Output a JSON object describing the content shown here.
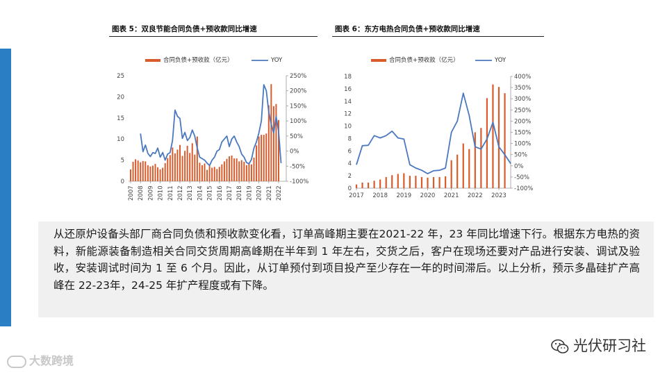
{
  "chart_data": [
    {
      "type": "bar+line",
      "title": "图表 5：双良节能合同负债+预收款同比增速",
      "legend": {
        "position": "top",
        "bar": "合同负债+预收款（亿元）",
        "line": "YOY"
      },
      "xticks": [
        "2007",
        "2008",
        "2009",
        "2010",
        "2011",
        "2012",
        "2013",
        "2014",
        "2015",
        "2016",
        "2017",
        "2018",
        "2019",
        "2020",
        "2021",
        "2022"
      ],
      "y_left": {
        "min": 0,
        "max": 25,
        "ticks": [
          "0",
          "5",
          "10",
          "15",
          "20",
          "25"
        ]
      },
      "y_right": {
        "min": -100,
        "max": 250,
        "ticks": [
          "-100%",
          "-50%",
          "0%",
          "50%",
          "100%",
          "150%",
          "200%",
          "250%"
        ]
      },
      "colors": {
        "bar": "#d95b2b",
        "line": "#4a78be"
      },
      "bar_values": [
        2.8,
        4.6,
        5.2,
        4.9,
        4.5,
        4.8,
        4.7,
        3.8,
        3.5,
        3.7,
        4.1,
        3.3,
        2.8,
        3.2,
        4.3,
        5.5,
        6.2,
        8.0,
        6.6,
        7.5,
        8.6,
        6.0,
        7.2,
        8.4,
        6.7,
        9.0,
        6.3,
        10.6,
        4.4,
        3.8,
        4.2,
        2.7,
        3.6,
        3.2,
        3.4,
        2.9,
        3.4,
        4.0,
        4.7,
        5.3,
        5.9,
        6.1,
        5.4,
        5.4,
        4.7,
        5.0,
        4.6,
        3.8,
        4.3,
        4.0,
        5.6,
        8.5,
        10.6,
        11.0,
        11.0,
        11.3,
        18.0,
        23.0,
        17.8,
        18.3,
        14.5
      ],
      "bar_x": [
        2007.0,
        2007.25,
        2007.5,
        2007.75,
        2008.0,
        2008.25,
        2008.5,
        2008.75,
        2009.0,
        2009.25,
        2009.5,
        2009.75,
        2010.0,
        2010.25,
        2010.5,
        2010.75,
        2011.0,
        2011.25,
        2011.5,
        2011.75,
        2012.0,
        2012.25,
        2012.5,
        2012.75,
        2013.0,
        2013.25,
        2013.5,
        2013.75,
        2014.0,
        2014.25,
        2014.5,
        2014.75,
        2015.0,
        2015.25,
        2015.5,
        2015.75,
        2016.0,
        2016.25,
        2016.5,
        2016.75,
        2017.0,
        2017.25,
        2017.5,
        2017.75,
        2018.0,
        2018.25,
        2018.5,
        2018.75,
        2019.0,
        2019.25,
        2019.5,
        2019.75,
        2020.0,
        2020.25,
        2020.5,
        2020.75,
        2021.0,
        2021.25,
        2021.5,
        2021.75,
        2022.0
      ],
      "line_x": [
        2008.0,
        2008.25,
        2008.5,
        2008.75,
        2009.0,
        2009.25,
        2009.5,
        2009.75,
        2010.0,
        2010.25,
        2010.5,
        2010.75,
        2011.0,
        2011.25,
        2011.5,
        2011.75,
        2012.0,
        2012.25,
        2012.5,
        2012.75,
        2013.0,
        2013.25,
        2013.5,
        2013.75,
        2014.0,
        2014.25,
        2014.5,
        2014.75,
        2015.0,
        2015.25,
        2015.5,
        2015.75,
        2016.0,
        2016.25,
        2016.5,
        2016.75,
        2017.0,
        2017.25,
        2017.5,
        2017.75,
        2018.0,
        2018.25,
        2018.5,
        2018.75,
        2019.0,
        2019.25,
        2019.5,
        2019.75,
        2020.0,
        2020.25,
        2020.5,
        2020.75,
        2021.0,
        2021.25,
        2021.5,
        2021.75,
        2022.0,
        2022.25
      ],
      "line_values": [
        58,
        -2,
        20,
        -8,
        -18,
        -5,
        -8,
        10,
        -20,
        -5,
        -30,
        -10,
        -5,
        35,
        136,
        115,
        108,
        42,
        62,
        35,
        45,
        70,
        50,
        10,
        -20,
        -25,
        -30,
        -40,
        -48,
        -30,
        -20,
        0,
        5,
        30,
        40,
        50,
        15,
        40,
        50,
        30,
        15,
        -10,
        -20,
        -38,
        -42,
        -28,
        10,
        30,
        60,
        100,
        220,
        200,
        130,
        90,
        60,
        115,
        65,
        -40
      ]
    },
    {
      "type": "bar+line",
      "title": "图表 6：东方电热合同负债+预收款同比增速",
      "legend": {
        "position": "top",
        "bar": "合同负债+预收款（亿元）",
        "line": "YOY"
      },
      "xticks": [
        "2017",
        "2018",
        "2019",
        "2020",
        "2021",
        "2022",
        "2023"
      ],
      "y_left": {
        "min": 0,
        "max": 18,
        "ticks": [
          "0",
          "2",
          "4",
          "6",
          "8",
          "10",
          "12",
          "14",
          "16",
          "18"
        ]
      },
      "y_right": {
        "min": -100,
        "max": 400,
        "ticks": [
          "-100%",
          "-50%",
          "0%",
          "50%",
          "100%",
          "150%",
          "200%",
          "250%",
          "300%",
          "350%",
          "400%"
        ]
      },
      "colors": {
        "bar": "#d95b2b",
        "line": "#4a78be"
      },
      "bar_x": [
        2017.0,
        2017.25,
        2017.5,
        2017.75,
        2018.0,
        2018.25,
        2018.5,
        2018.75,
        2019.0,
        2019.25,
        2019.5,
        2019.75,
        2020.0,
        2020.25,
        2020.5,
        2020.75,
        2021.0,
        2021.25,
        2021.5,
        2021.75,
        2022.0,
        2022.25,
        2022.5,
        2022.75,
        2023.0,
        2023.25
      ],
      "bar_values": [
        0.6,
        0.9,
        0.9,
        1.2,
        1.4,
        1.8,
        2.1,
        2.3,
        2.4,
        2.0,
        2.0,
        1.8,
        1.7,
        1.8,
        1.8,
        1.9,
        4.5,
        5.4,
        7.2,
        6.3,
        9.0,
        9.7,
        14.5,
        16.7,
        16.3,
        15.3
      ],
      "line_x": [
        2017.0,
        2017.25,
        2017.5,
        2017.75,
        2018.0,
        2018.25,
        2018.5,
        2018.75,
        2019.0,
        2019.25,
        2019.5,
        2019.75,
        2020.0,
        2020.25,
        2020.5,
        2020.75,
        2021.0,
        2021.25,
        2021.5,
        2021.75,
        2022.0,
        2022.25,
        2022.5,
        2022.75,
        2023.0,
        2023.25,
        2023.5
      ],
      "line_values": [
        5,
        90,
        92,
        135,
        125,
        135,
        155,
        125,
        120,
        5,
        -10,
        -20,
        -35,
        -22,
        -20,
        -10,
        150,
        200,
        325,
        225,
        85,
        75,
        120,
        195,
        85,
        50,
        10
      ]
    }
  ],
  "text": {
    "paragraph": "从还原炉设备头部厂商合同负债和预收款变化看，订单高峰期主要在2021-22 年，23 年同比增速下行。根据东方电热的资料，新能源装备制造相关合同交货周期高峰期在半年到 1 年左右，交货之后，客户在现场还要对产品进行安装、调试及验收，安装调试时间为 1 至 6 个月。因此，从订单预付到项目投产至少存在一年的时间滞后。以上分析，预示多晶硅扩产高峰在 22-23年，24-25 年扩产程度或有下降。"
  },
  "branding": {
    "left": "大数跨境",
    "right": "光伏研习社",
    "left_icon": "c-logo-icon",
    "right_icon": "wechat-icon"
  }
}
